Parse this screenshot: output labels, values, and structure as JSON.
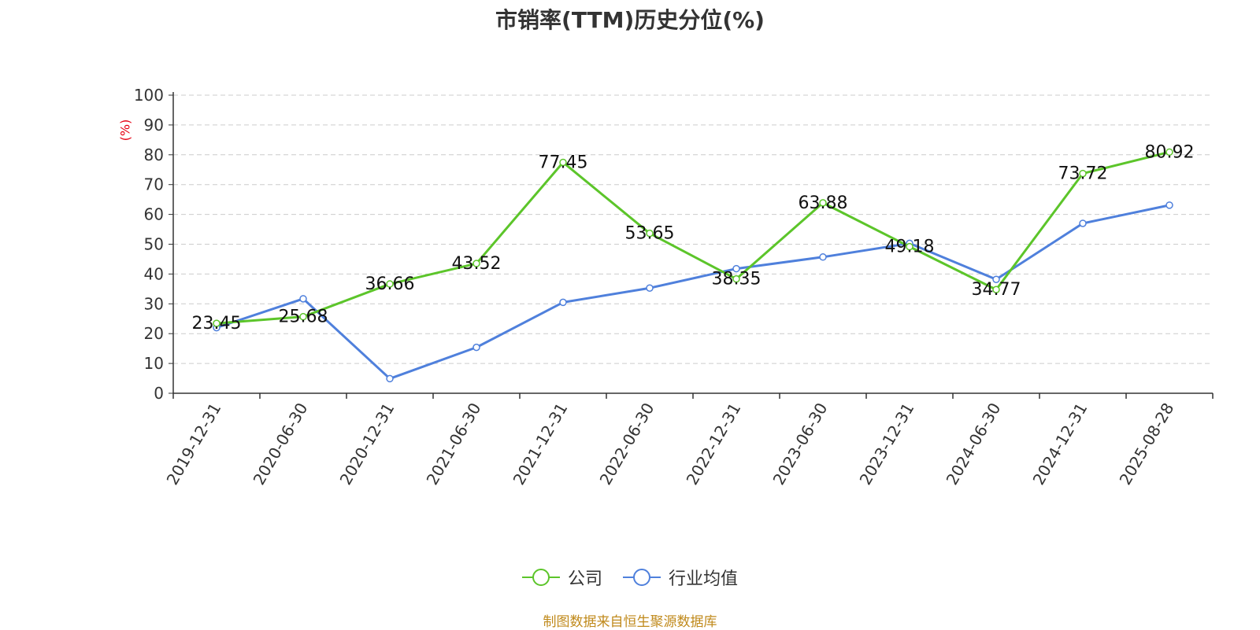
{
  "title": "市销率(TTM)历史分位(%)",
  "y_unit": "(%)",
  "source": "制图数据来自恒生聚源数据库",
  "colors": {
    "company": "#5cc52a",
    "industry": "#4f80dc",
    "unit": "#e60012",
    "source": "#c08a1c"
  },
  "chart_data": {
    "type": "line",
    "title": "市销率(TTM)历史分位(%)",
    "ylabel": "(%)",
    "xlabel": "",
    "ylim": [
      0,
      100
    ],
    "yticks": [
      0,
      10,
      20,
      30,
      40,
      50,
      60,
      70,
      80,
      90,
      100
    ],
    "grid": true,
    "legend_position": "bottom",
    "categories": [
      "2019-12-31",
      "2020-06-30",
      "2020-12-31",
      "2021-06-30",
      "2021-12-31",
      "2022-06-30",
      "2022-12-31",
      "2023-06-30",
      "2023-12-31",
      "2024-06-30",
      "2024-12-31",
      "2025-08-28"
    ],
    "series": [
      {
        "name": "公司",
        "color": "#5cc52a",
        "show_labels": true,
        "values": [
          23.45,
          25.68,
          36.66,
          43.52,
          77.45,
          53.65,
          38.35,
          63.88,
          49.18,
          34.77,
          73.72,
          80.92
        ],
        "labels": [
          "23.45",
          "25.68",
          "36.66",
          "43.52",
          "77.45",
          "53.65",
          "38.35",
          "63.88",
          "49.18",
          "34.77",
          "73.72",
          "80.92"
        ]
      },
      {
        "name": "行业均值",
        "color": "#4f80dc",
        "show_labels": false,
        "values": [
          22.0,
          31.7,
          4.9,
          15.4,
          30.5,
          35.3,
          41.8,
          45.7,
          50.3,
          38.2,
          57.0,
          63.1
        ]
      }
    ]
  }
}
